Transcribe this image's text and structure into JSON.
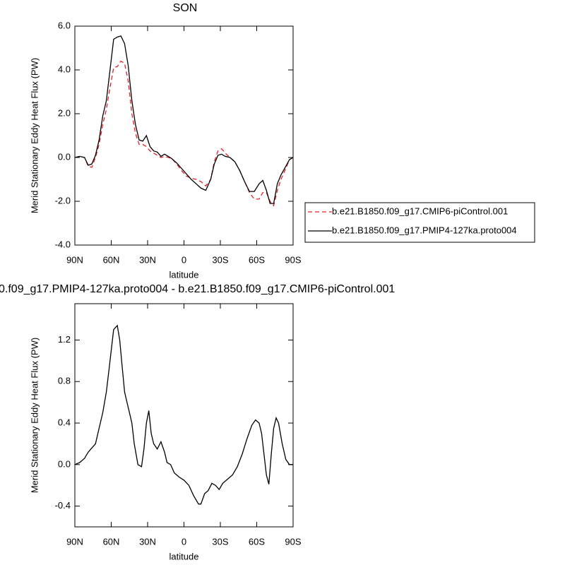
{
  "chart_data": [
    {
      "type": "line",
      "title": "SON",
      "xlabel": "latitude",
      "ylabel": "Merid Stationary Eddy Heat Flux (PW)",
      "xlim": [
        90,
        -90
      ],
      "xticks": [
        {
          "value": 90,
          "label": "90N"
        },
        {
          "value": 60,
          "label": "60N"
        },
        {
          "value": 30,
          "label": "30N"
        },
        0,
        {
          "value": -30,
          "label": "30S"
        },
        {
          "value": -60,
          "label": "60S"
        },
        {
          "value": -90,
          "label": "90S"
        }
      ],
      "ylim": [
        -4,
        6
      ],
      "yticks": [
        {
          "value": -4,
          "label": "-4.0"
        },
        {
          "value": -2,
          "label": "-2.0"
        },
        {
          "value": 0,
          "label": "0.0"
        },
        {
          "value": 2,
          "label": "2.0"
        },
        {
          "value": 4,
          "label": "4.0"
        },
        {
          "value": 6,
          "label": "6.0"
        }
      ],
      "legend": "right",
      "x": [
        90,
        86,
        82,
        79,
        76,
        73,
        70,
        67,
        64,
        61,
        58,
        55,
        52,
        49,
        46,
        43,
        40,
        37,
        34,
        31,
        28,
        25,
        22,
        19,
        16,
        13,
        10,
        6,
        2,
        -2,
        -6,
        -10,
        -14,
        -18,
        -22,
        -25,
        -28,
        -31,
        -34,
        -38,
        -42,
        -46,
        -50,
        -54,
        -58,
        -62,
        -65,
        -68,
        -71,
        -74,
        -77,
        -80,
        -84,
        -87,
        -90
      ],
      "series": [
        {
          "name": "b.e21.B1850.f09_g17.CMIP6-piControl.001",
          "color": "#e8202a",
          "dash": true,
          "values": [
            0,
            0.05,
            0,
            -0.4,
            -0.45,
            0.0,
            0.6,
            1.5,
            2.2,
            3.2,
            4.1,
            4.15,
            4.4,
            4.3,
            3.5,
            2.0,
            1.1,
            0.6,
            0.6,
            0.5,
            0.3,
            0.2,
            0.1,
            0.0,
            0.05,
            0.0,
            -0.05,
            -0.3,
            -0.6,
            -0.85,
            -0.95,
            -1.0,
            -1.1,
            -1.3,
            -1.0,
            -0.2,
            0.3,
            0.4,
            0.2,
            0.0,
            -0.2,
            -0.6,
            -1.1,
            -1.6,
            -1.9,
            -1.9,
            -1.6,
            -1.6,
            -2.0,
            -2.2,
            -1.5,
            -1.0,
            -0.5,
            -0.1,
            0.0
          ]
        },
        {
          "name": "b.e21.B1850.f09_g17.PMIP4-127ka.proto004",
          "color": "#000000",
          "dash": false,
          "values": [
            0,
            0.05,
            0,
            -0.35,
            -0.3,
            0.1,
            0.8,
            1.9,
            2.6,
            4.0,
            5.4,
            5.5,
            5.55,
            5.2,
            4.2,
            2.6,
            1.5,
            0.8,
            0.75,
            1.0,
            0.5,
            0.3,
            0.25,
            0.05,
            0.15,
            0.05,
            -0.05,
            -0.25,
            -0.5,
            -0.75,
            -1.0,
            -1.2,
            -1.4,
            -1.5,
            -1.0,
            -0.3,
            0.1,
            0.15,
            0.05,
            0.0,
            -0.2,
            -0.6,
            -1.1,
            -1.55,
            -1.55,
            -1.2,
            -1.05,
            -1.5,
            -2.1,
            -2.1,
            -1.2,
            -0.8,
            -0.4,
            -0.1,
            0.0
          ]
        }
      ]
    },
    {
      "type": "line",
      "title": "0.f09_g17.PMIP4-127ka.proto004 - b.e21.B1850.f09_g17.CMIP6-piControl.001",
      "xlabel": "latitude",
      "ylabel": "Merid Stationary Eddy Heat Flux (PW)",
      "xlim": [
        90,
        -90
      ],
      "xticks": [
        {
          "value": 90,
          "label": "90N"
        },
        {
          "value": 60,
          "label": "60N"
        },
        {
          "value": 30,
          "label": "30N"
        },
        0,
        {
          "value": -30,
          "label": "30S"
        },
        {
          "value": -60,
          "label": "60S"
        },
        {
          "value": -90,
          "label": "90S"
        }
      ],
      "ylim": [
        -0.6,
        1.55
      ],
      "yticks": [
        -0.4,
        {
          "value": 0,
          "label": "0.0"
        },
        0.4,
        0.8,
        1.2
      ],
      "x": [
        90,
        86,
        82,
        79,
        76,
        73,
        70,
        67,
        64,
        61,
        58,
        55,
        53,
        51,
        49,
        47,
        45,
        43,
        41,
        38,
        35,
        33,
        31,
        29,
        27,
        25,
        22,
        19,
        16,
        14,
        11,
        8,
        4,
        0,
        -4,
        -8,
        -12,
        -14,
        -17,
        -20,
        -23,
        -26,
        -29,
        -32,
        -36,
        -40,
        -44,
        -48,
        -52,
        -56,
        -59,
        -62,
        -64,
        -66,
        -68,
        -70,
        -72,
        -74,
        -76,
        -78,
        -81,
        -84,
        -87,
        -90
      ],
      "series": [
        {
          "color": "#000000",
          "dash": false,
          "values": [
            0,
            0.02,
            0.06,
            0.12,
            0.16,
            0.2,
            0.35,
            0.5,
            0.7,
            1.0,
            1.3,
            1.34,
            1.2,
            0.95,
            0.7,
            0.6,
            0.5,
            0.4,
            0.2,
            0.0,
            -0.02,
            0.15,
            0.4,
            0.52,
            0.3,
            0.2,
            0.15,
            0.22,
            0.12,
            0.02,
            0.0,
            -0.08,
            -0.12,
            -0.15,
            -0.2,
            -0.3,
            -0.38,
            -0.38,
            -0.28,
            -0.25,
            -0.18,
            -0.2,
            -0.24,
            -0.18,
            -0.14,
            -0.1,
            -0.02,
            0.1,
            0.25,
            0.38,
            0.43,
            0.4,
            0.3,
            0.1,
            -0.1,
            -0.19,
            0.1,
            0.35,
            0.45,
            0.4,
            0.2,
            0.05,
            0.0,
            0.0
          ]
        }
      ]
    }
  ]
}
